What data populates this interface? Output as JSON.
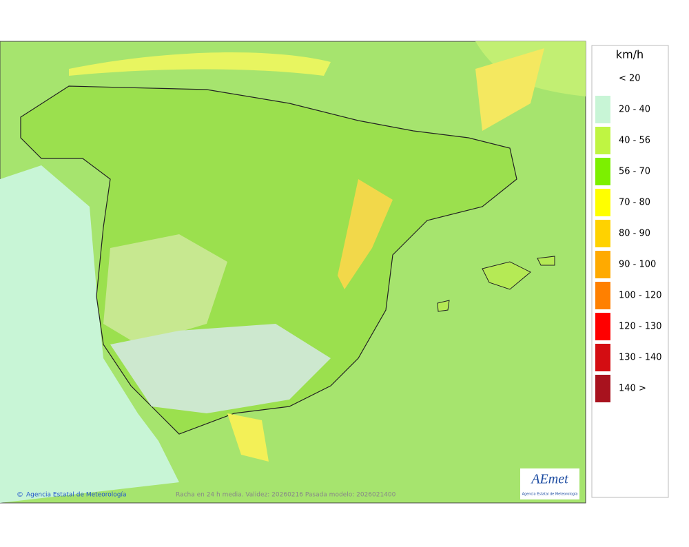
{
  "map": {
    "credit": "Agencia Estatal de Meteorología",
    "caption": "Racha en 24 h media. Validez: 20260216 Pasada modelo: 2026021400",
    "logo": {
      "name": "AEmet",
      "subtitle": "Agencia Estatal de Meteorología"
    }
  },
  "legend": {
    "unit": "km/h",
    "items": [
      {
        "label": "< 20"
      },
      {
        "label": "20 - 40",
        "color": "#c8f5d6"
      },
      {
        "label": "40 - 56",
        "color": "#bff542"
      },
      {
        "label": "56 - 70",
        "color": "#7cf000"
      },
      {
        "label": "70 - 80",
        "color": "#ffff00"
      },
      {
        "label": "80 - 90",
        "color": "#ffd200"
      },
      {
        "label": "90 - 100",
        "color": "#ffaa00"
      },
      {
        "label": "100 - 120",
        "color": "#ff8000"
      },
      {
        "label": "120 - 130",
        "color": "#ff0000"
      },
      {
        "label": "130 - 140",
        "color": "#d40d12"
      },
      {
        "label": "140 >",
        "color": "#a8121e"
      }
    ]
  }
}
